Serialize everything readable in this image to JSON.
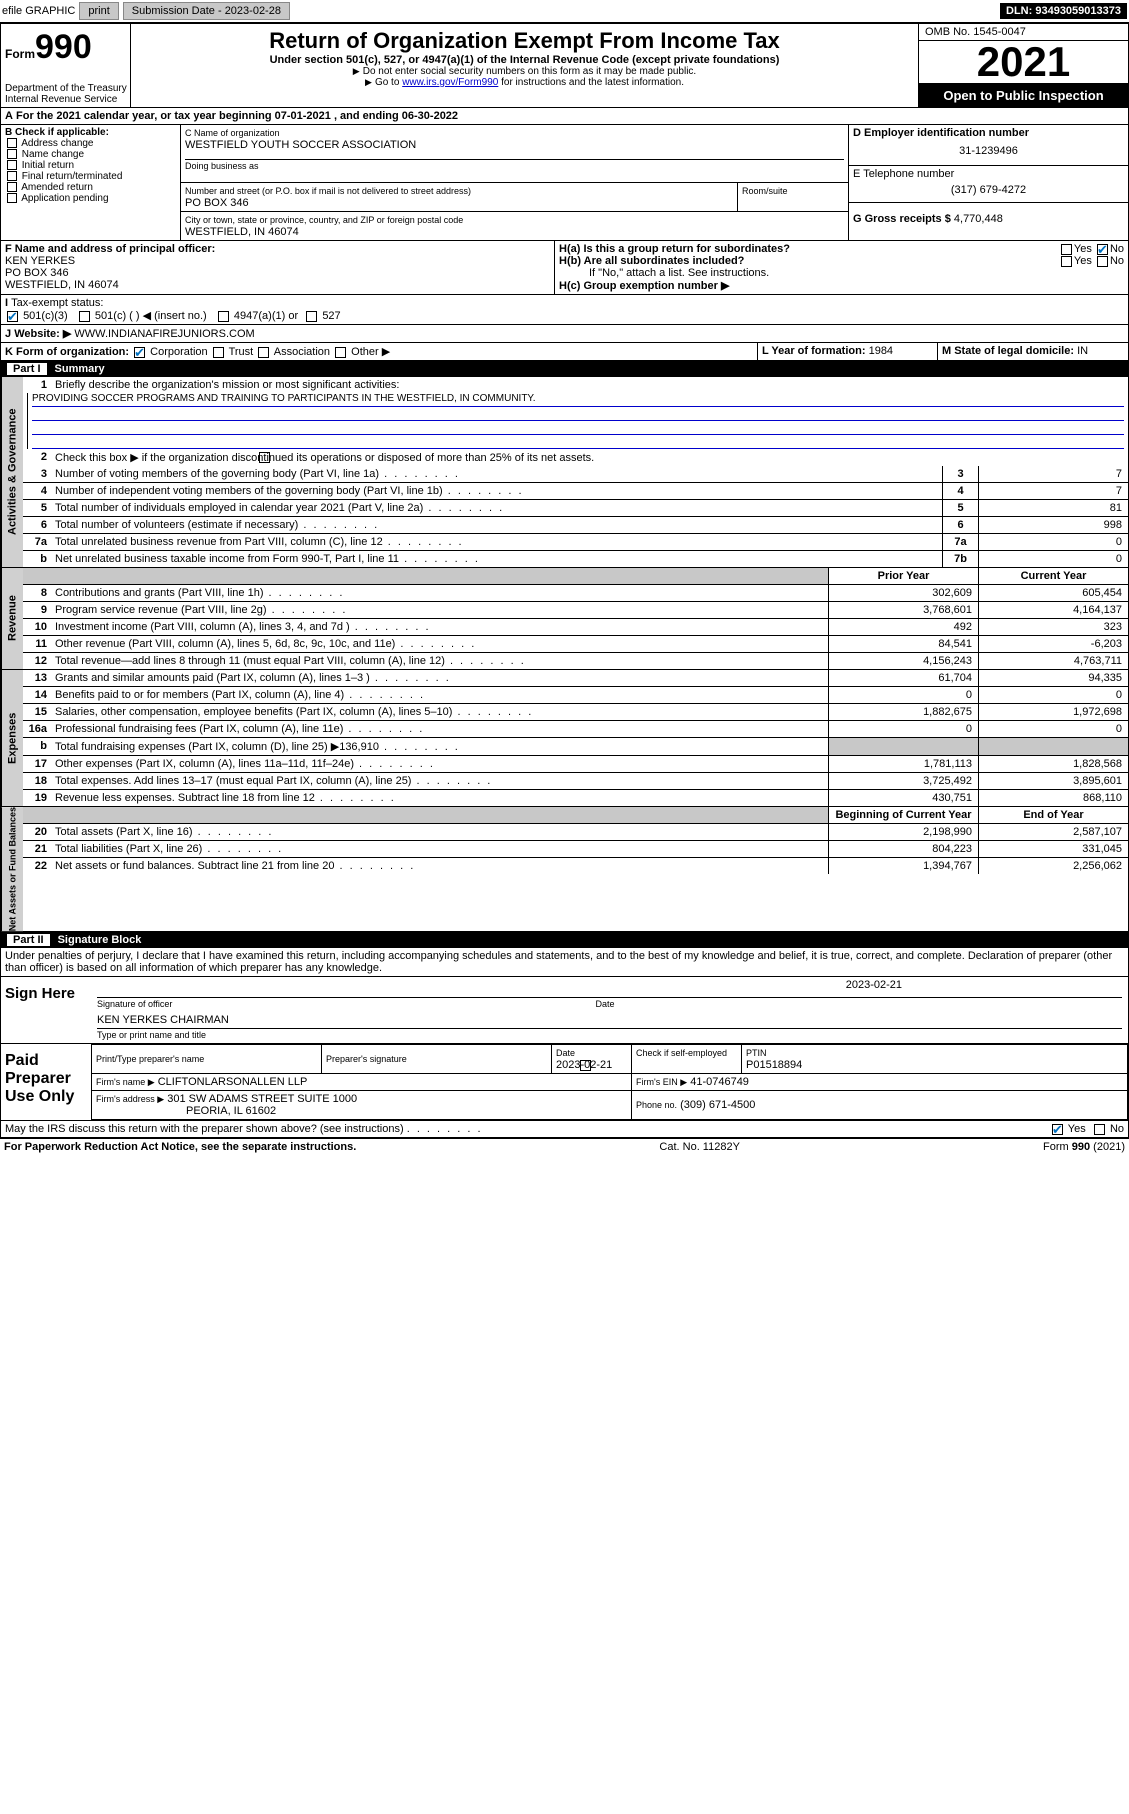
{
  "topbar": {
    "efile": "efile GRAPHIC",
    "print": "print",
    "sub_label": "Submission Date - 2023-02-28",
    "dln": "DLN: 93493059013373"
  },
  "header": {
    "form_label": "Form",
    "form_num": "990",
    "title": "Return of Organization Exempt From Income Tax",
    "subtitle": "Under section 501(c), 527, or 4947(a)(1) of the Internal Revenue Code (except private foundations)",
    "note1": "Do not enter social security numbers on this form as it may be made public.",
    "note2_pre": "Go to ",
    "note2_link": "www.irs.gov/Form990",
    "note2_post": " for instructions and the latest information.",
    "dept": "Department of the Treasury",
    "irs": "Internal Revenue Service",
    "omb": "OMB No. 1545-0047",
    "year": "2021",
    "inspect": "Open to Public Inspection"
  },
  "period": {
    "line_a": "For the 2021 calendar year, or tax year beginning 07-01-2021   , and ending 06-30-2022"
  },
  "block_b": {
    "title": "B Check if applicable:",
    "opts": [
      "Address change",
      "Name change",
      "Initial return",
      "Final return/terminated",
      "Amended return",
      "Application pending"
    ]
  },
  "block_c": {
    "label_name": "C Name of organization",
    "name": "WESTFIELD YOUTH SOCCER ASSOCIATION",
    "dba_label": "Doing business as",
    "addr_label": "Number and street (or P.O. box if mail is not delivered to street address)",
    "room_label": "Room/suite",
    "addr": "PO BOX 346",
    "city_label": "City or town, state or province, country, and ZIP or foreign postal code",
    "city": "WESTFIELD, IN  46074"
  },
  "block_d": {
    "label": "D Employer identification number",
    "val": "31-1239496"
  },
  "block_e": {
    "label": "E Telephone number",
    "val": "(317) 679-4272"
  },
  "block_g": {
    "label": "G Gross receipts $",
    "val": "4,770,448"
  },
  "block_f": {
    "label": "F  Name and address of principal officer:",
    "l1": "KEN YERKES",
    "l2": "PO BOX 346",
    "l3": "WESTFIELD, IN  46074"
  },
  "block_h": {
    "ha": "H(a)  Is this a group return for subordinates?",
    "hb": "H(b)  Are all subordinates included?",
    "hb_note": "If \"No,\" attach a list. See instructions.",
    "hc": "H(c)  Group exemption number ▶",
    "yes": "Yes",
    "no": "No"
  },
  "tax_status": {
    "label": "Tax-exempt status:",
    "o1": "501(c)(3)",
    "o2": "501(c) (  ) ◀ (insert no.)",
    "o3": "4947(a)(1) or",
    "o4": "527"
  },
  "website": {
    "label": "Website: ▶",
    "val": "WWW.INDIANAFIREJUNIORS.COM"
  },
  "block_k": {
    "label": "K Form of organization:",
    "o1": "Corporation",
    "o2": "Trust",
    "o3": "Association",
    "o4": "Other ▶"
  },
  "block_l": {
    "label": "L Year of formation:",
    "val": "1984"
  },
  "block_m": {
    "label": "M State of legal domicile:",
    "val": "IN"
  },
  "part1": {
    "bar": "Summary",
    "part": "Part I",
    "q1": "Briefly describe the organization's mission or most significant activities:",
    "mission": "PROVIDING SOCCER PROGRAMS AND TRAINING TO PARTICIPANTS IN THE WESTFIELD, IN COMMUNITY.",
    "q2": "Check this box ▶      if the organization discontinued its operations or disposed of more than 25% of its net assets.",
    "rows_top": [
      {
        "n": "3",
        "t": "Number of voting members of the governing body (Part VI, line 1a)",
        "c": "3",
        "v": "7"
      },
      {
        "n": "4",
        "t": "Number of independent voting members of the governing body (Part VI, line 1b)",
        "c": "4",
        "v": "7"
      },
      {
        "n": "5",
        "t": "Total number of individuals employed in calendar year 2021 (Part V, line 2a)",
        "c": "5",
        "v": "81"
      },
      {
        "n": "6",
        "t": "Total number of volunteers (estimate if necessary)",
        "c": "6",
        "v": "998"
      },
      {
        "n": "7a",
        "t": "Total unrelated business revenue from Part VIII, column (C), line 12",
        "c": "7a",
        "v": "0"
      },
      {
        "n": "b",
        "t": "Net unrelated business taxable income from Form 990-T, Part I, line 11",
        "c": "7b",
        "v": "0"
      }
    ],
    "head_prior": "Prior Year",
    "head_curr": "Current Year",
    "revenue": [
      {
        "n": "8",
        "t": "Contributions and grants (Part VIII, line 1h)",
        "p": "302,609",
        "c": "605,454"
      },
      {
        "n": "9",
        "t": "Program service revenue (Part VIII, line 2g)",
        "p": "3,768,601",
        "c": "4,164,137"
      },
      {
        "n": "10",
        "t": "Investment income (Part VIII, column (A), lines 3, 4, and 7d )",
        "p": "492",
        "c": "323"
      },
      {
        "n": "11",
        "t": "Other revenue (Part VIII, column (A), lines 5, 6d, 8c, 9c, 10c, and 11e)",
        "p": "84,541",
        "c": "-6,203"
      },
      {
        "n": "12",
        "t": "Total revenue—add lines 8 through 11 (must equal Part VIII, column (A), line 12)",
        "p": "4,156,243",
        "c": "4,763,711"
      }
    ],
    "expenses": [
      {
        "n": "13",
        "t": "Grants and similar amounts paid (Part IX, column (A), lines 1–3 )",
        "p": "61,704",
        "c": "94,335"
      },
      {
        "n": "14",
        "t": "Benefits paid to or for members (Part IX, column (A), line 4)",
        "p": "0",
        "c": "0"
      },
      {
        "n": "15",
        "t": "Salaries, other compensation, employee benefits (Part IX, column (A), lines 5–10)",
        "p": "1,882,675",
        "c": "1,972,698"
      },
      {
        "n": "16a",
        "t": "Professional fundraising fees (Part IX, column (A), line 11e)",
        "p": "0",
        "c": "0"
      },
      {
        "n": "b",
        "t": "Total fundraising expenses (Part IX, column (D), line 25) ▶136,910",
        "p": "",
        "c": "",
        "shade": true
      },
      {
        "n": "17",
        "t": "Other expenses (Part IX, column (A), lines 11a–11d, 11f–24e)",
        "p": "1,781,113",
        "c": "1,828,568"
      },
      {
        "n": "18",
        "t": "Total expenses. Add lines 13–17 (must equal Part IX, column (A), line 25)",
        "p": "3,725,492",
        "c": "3,895,601"
      },
      {
        "n": "19",
        "t": "Revenue less expenses. Subtract line 18 from line 12",
        "p": "430,751",
        "c": "868,110"
      }
    ],
    "head_begin": "Beginning of Current Year",
    "head_end": "End of Year",
    "netassets": [
      {
        "n": "20",
        "t": "Total assets (Part X, line 16)",
        "p": "2,198,990",
        "c": "2,587,107"
      },
      {
        "n": "21",
        "t": "Total liabilities (Part X, line 26)",
        "p": "804,223",
        "c": "331,045"
      },
      {
        "n": "22",
        "t": "Net assets or fund balances. Subtract line 21 from line 20",
        "p": "1,394,767",
        "c": "2,256,062"
      }
    ],
    "vlabels": {
      "gov": "Activities & Governance",
      "rev": "Revenue",
      "exp": "Expenses",
      "net": "Net Assets or Fund Balances"
    }
  },
  "part2": {
    "part": "Part II",
    "bar": "Signature Block",
    "decl": "Under penalties of perjury, I declare that I have examined this return, including accompanying schedules and statements, and to the best of my knowledge and belief, it is true, correct, and complete. Declaration of preparer (other than officer) is based on all information of which preparer has any knowledge.",
    "sign_here": "Sign Here",
    "sig_officer": "Signature of officer",
    "sig_date_label": "Date",
    "sig_date": "2023-02-21",
    "sig_name": "KEN YERKES  CHAIRMAN",
    "sig_name_label": "Type or print name and title",
    "paid": "Paid Preparer Use Only",
    "prep_name_label": "Print/Type preparer's name",
    "prep_sig_label": "Preparer's signature",
    "prep_date_label": "Date",
    "prep_date": "2023-02-21",
    "prep_self": "Check      if self-employed",
    "ptin_label": "PTIN",
    "ptin": "P01518894",
    "firm_name_label": "Firm's name   ▶",
    "firm_name": "CLIFTONLARSONALLEN LLP",
    "firm_ein_label": "Firm's EIN ▶",
    "firm_ein": "41-0746749",
    "firm_addr_label": "Firm's address ▶",
    "firm_addr1": "301 SW ADAMS STREET SUITE 1000",
    "firm_addr2": "PEORIA, IL  61602",
    "firm_phone_label": "Phone no.",
    "firm_phone": "(309) 671-4500",
    "may_irs": "May the IRS discuss this return with the preparer shown above? (see instructions)",
    "yes": "Yes",
    "no": "No"
  },
  "footer": {
    "left": "For Paperwork Reduction Act Notice, see the separate instructions.",
    "mid": "Cat. No. 11282Y",
    "right": "Form 990 (2021)"
  }
}
